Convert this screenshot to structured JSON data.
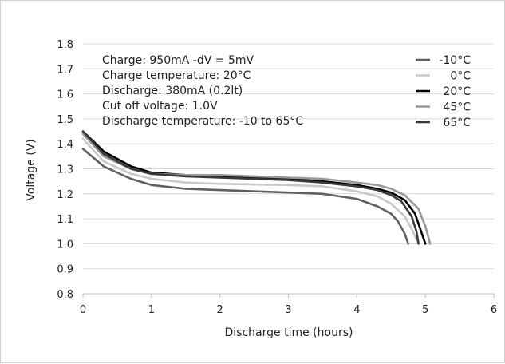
{
  "chart_data": {
    "type": "line",
    "xlabel": "Discharge time (hours)",
    "ylabel": "Voltage (V)",
    "xlim": [
      0,
      6
    ],
    "ylim": [
      0.8,
      1.8
    ],
    "x_ticks": [
      0,
      1,
      2,
      3,
      4,
      5,
      6
    ],
    "y_ticks": [
      "0.8",
      "0.9",
      "1.0",
      "1.1",
      "1.2",
      "1.3",
      "1.4",
      "1.5",
      "1.6",
      "1.7",
      "1.8"
    ],
    "grid": "horizontal",
    "legend_position": "top-right",
    "annotations": [
      "Charge: 950mA -dV = 5mV",
      "Charge temperature: 20°C",
      "Discharge: 380mA (0.2lt)",
      "Cut off voltage: 1.0V",
      "Discharge temperature: -10 to 65°C"
    ],
    "series": [
      {
        "name": "-10°C",
        "color": "#606060",
        "x": [
          0,
          0.3,
          0.7,
          1.0,
          1.5,
          2.0,
          3.0,
          3.5,
          4.0,
          4.3,
          4.5,
          4.6,
          4.7,
          4.75
        ],
        "y": [
          1.38,
          1.31,
          1.26,
          1.235,
          1.22,
          1.215,
          1.205,
          1.2,
          1.18,
          1.15,
          1.12,
          1.09,
          1.04,
          1.0
        ]
      },
      {
        "name": "0°C",
        "color": "#c8c8c8",
        "x": [
          0,
          0.3,
          0.7,
          1.0,
          1.5,
          2.0,
          3.0,
          3.5,
          4.0,
          4.3,
          4.5,
          4.7,
          4.8,
          4.9
        ],
        "y": [
          1.42,
          1.33,
          1.28,
          1.26,
          1.245,
          1.24,
          1.235,
          1.23,
          1.21,
          1.19,
          1.16,
          1.11,
          1.06,
          1.0
        ]
      },
      {
        "name": "20°C",
        "color": "#000000",
        "x": [
          0,
          0.3,
          0.7,
          1.0,
          1.5,
          2.0,
          3.0,
          3.5,
          4.0,
          4.3,
          4.5,
          4.7,
          4.85,
          4.95,
          5.0
        ],
        "y": [
          1.45,
          1.37,
          1.31,
          1.285,
          1.275,
          1.27,
          1.26,
          1.25,
          1.235,
          1.22,
          1.205,
          1.175,
          1.12,
          1.04,
          1.0
        ]
      },
      {
        "name": "45°C",
        "color": "#999999",
        "x": [
          0,
          0.3,
          0.7,
          1.0,
          1.5,
          2.0,
          3.0,
          3.5,
          4.0,
          4.3,
          4.5,
          4.7,
          4.9,
          5.0,
          5.07
        ],
        "y": [
          1.44,
          1.35,
          1.3,
          1.28,
          1.275,
          1.275,
          1.265,
          1.26,
          1.245,
          1.235,
          1.22,
          1.195,
          1.14,
          1.07,
          1.0
        ]
      },
      {
        "name": "65°C",
        "color": "#3a3a3a",
        "x": [
          0,
          0.3,
          0.7,
          1.0,
          1.5,
          2.0,
          3.0,
          3.5,
          4.0,
          4.3,
          4.5,
          4.65,
          4.8,
          4.87,
          4.9
        ],
        "y": [
          1.45,
          1.36,
          1.3,
          1.28,
          1.27,
          1.265,
          1.255,
          1.245,
          1.23,
          1.215,
          1.195,
          1.17,
          1.11,
          1.05,
          1.0
        ]
      }
    ]
  }
}
